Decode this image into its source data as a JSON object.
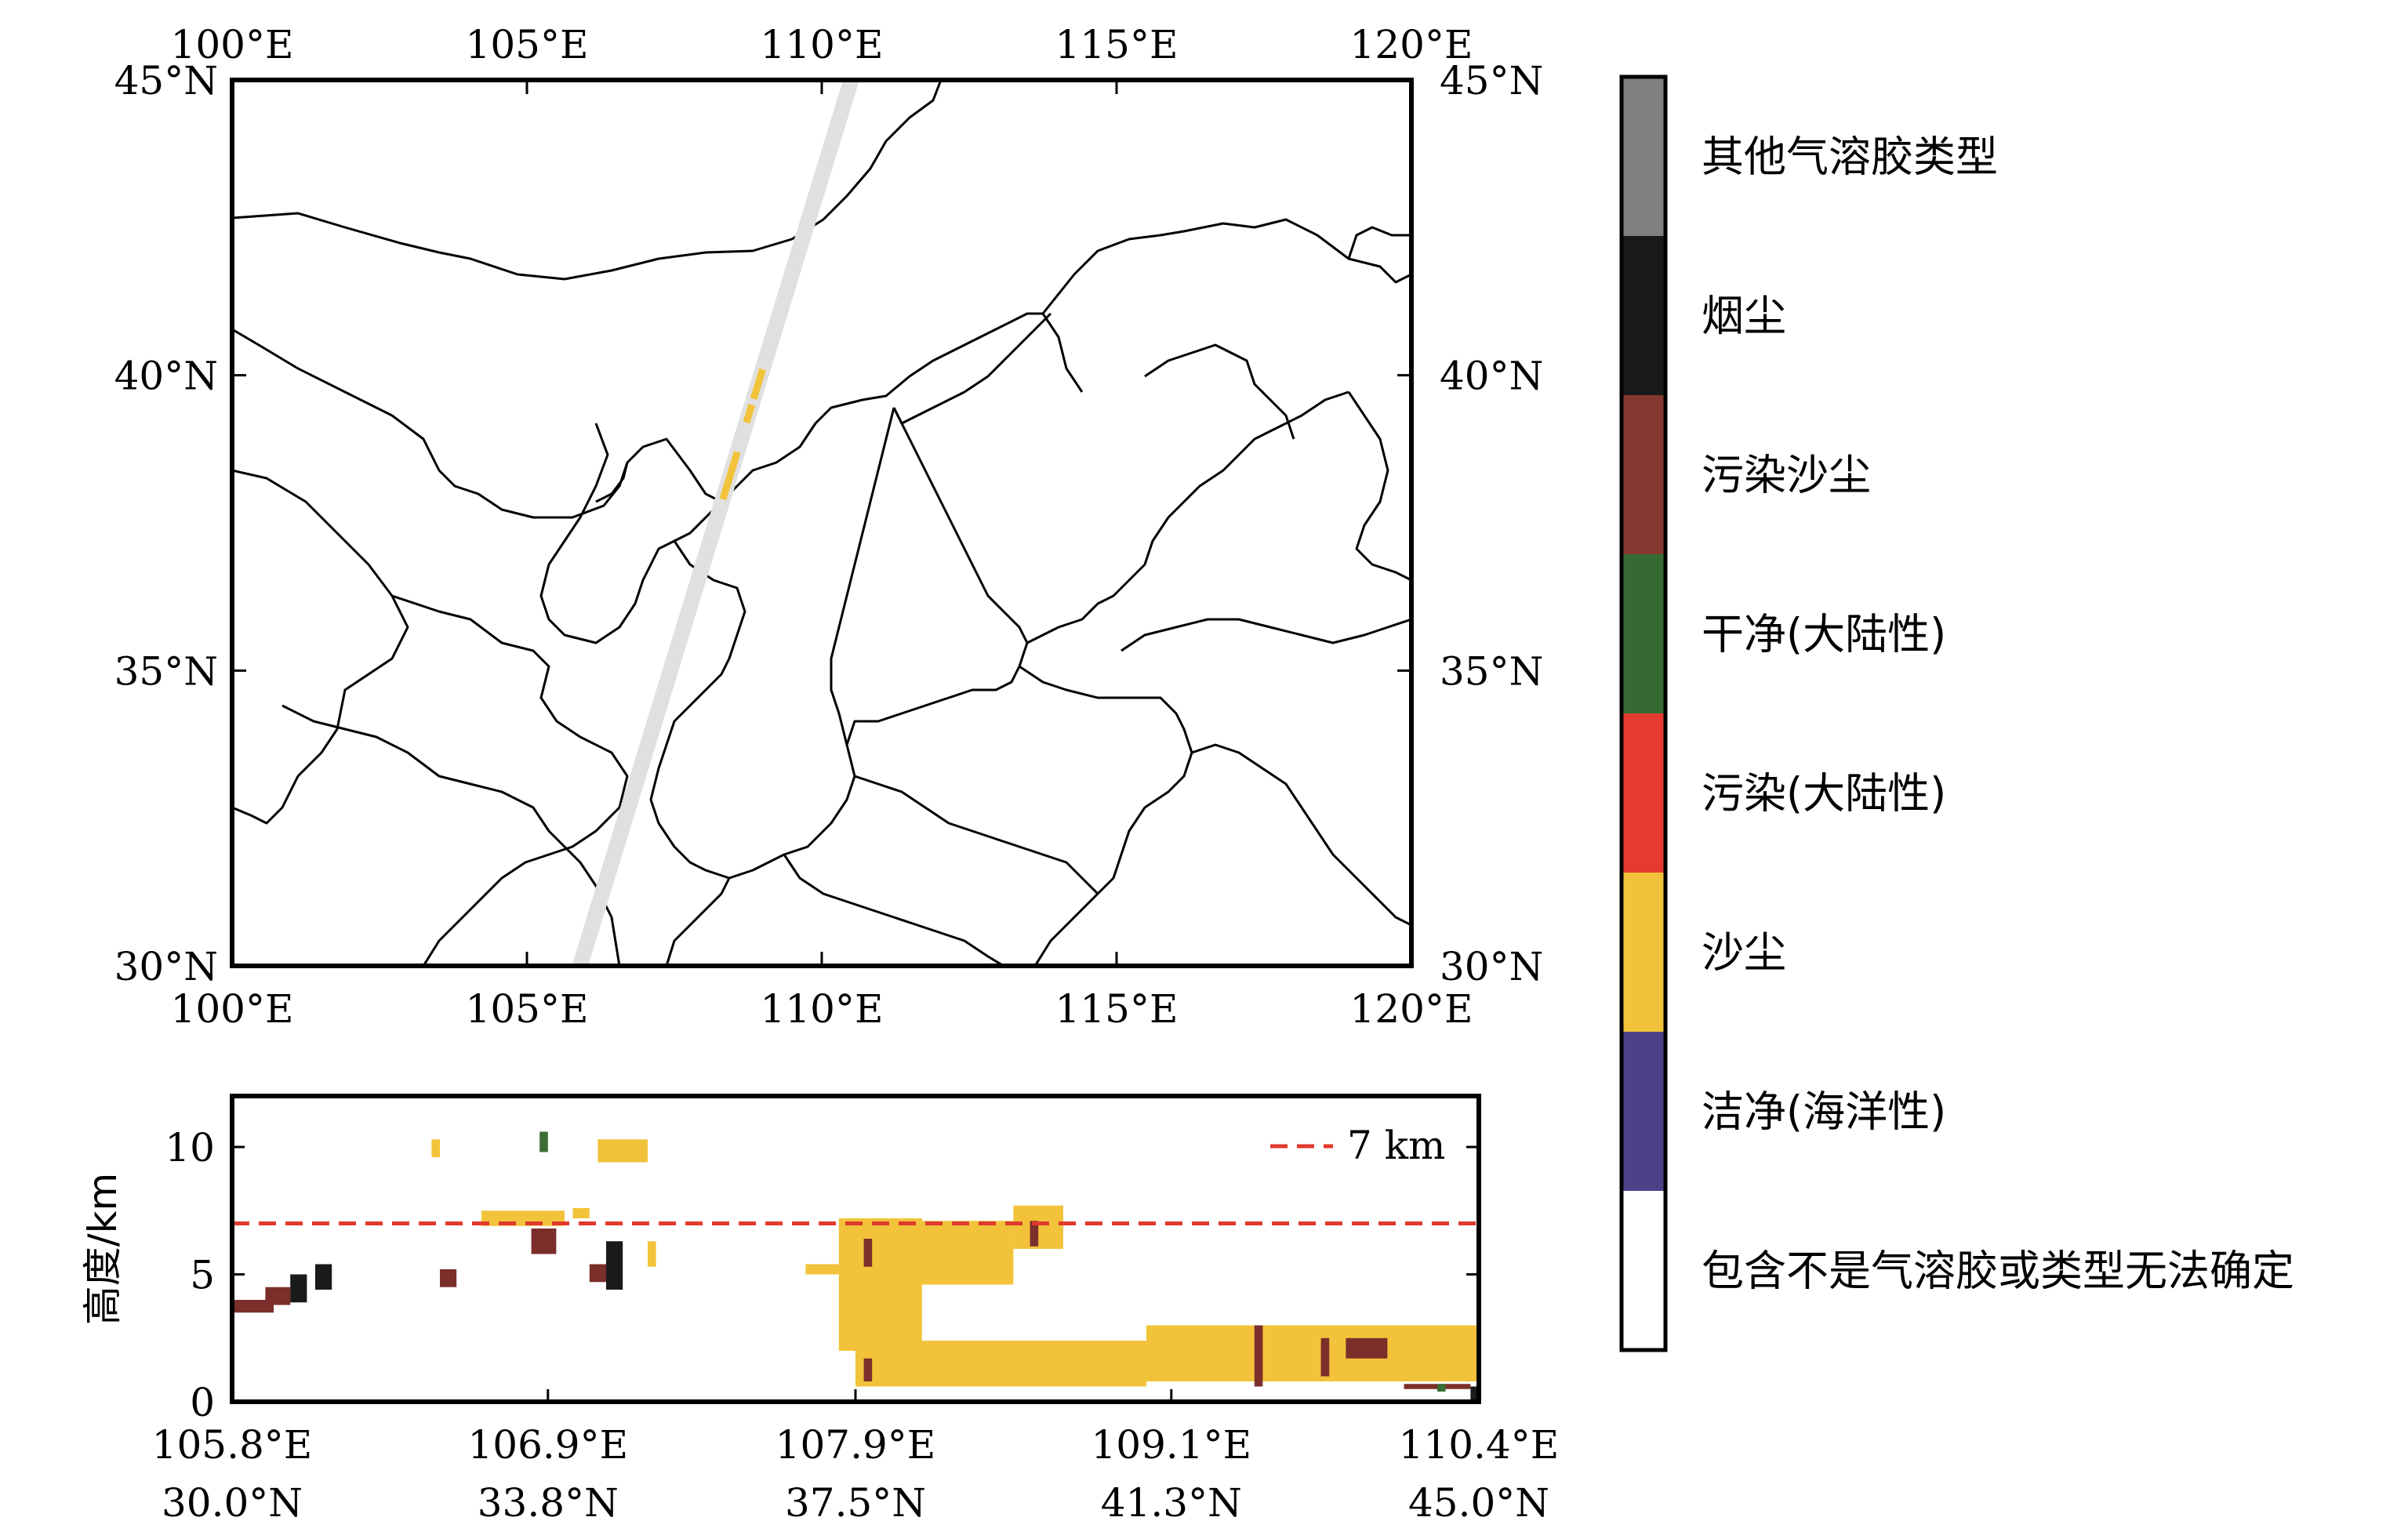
{
  "chart_data": [
    {
      "type": "map",
      "x_ticks": [
        "100°E",
        "105°E",
        "110°E",
        "115°E",
        "120°E"
      ],
      "y_ticks": [
        "45°N",
        "40°N",
        "35°N",
        "30°N"
      ],
      "lon_range": [
        100,
        120
      ],
      "lat_range": [
        30,
        45
      ],
      "track": {
        "from": [
          105.9,
          30.0
        ],
        "to": [
          110.5,
          45.0
        ],
        "color": "#e0e0e0"
      },
      "dust_segments": [
        {
          "lat_from": 37.9,
          "lat_to": 38.7,
          "color": "#f2c33a"
        },
        {
          "lat_from": 39.2,
          "lat_to": 39.5,
          "color": "#f2c33a"
        },
        {
          "lat_from": 39.6,
          "lat_to": 40.1,
          "color": "#f2c33a"
        }
      ]
    },
    {
      "type": "scatter",
      "ylabel": "高度/km",
      "ylim": [
        0,
        12
      ],
      "yticks": [
        "0",
        "5",
        "10"
      ],
      "xticks_lon": [
        "105.8°E",
        "106.9°E",
        "107.9°E",
        "109.1°E",
        "110.4°E"
      ],
      "xticks_lat": [
        "30.0°N",
        "33.8°N",
        "37.5°N",
        "41.3°N",
        "45.0°N"
      ],
      "x_positions": [
        30.0,
        33.8,
        37.5,
        41.3,
        45.0
      ],
      "xlim": [
        30.0,
        45.0
      ],
      "reference_line": {
        "label": "7 km",
        "value": 7,
        "color": "#e03a2e"
      },
      "patches": [
        {
          "x0": 30.0,
          "x1": 30.5,
          "y0": 3.5,
          "y1": 4.0,
          "color": "#7b2e2a"
        },
        {
          "x0": 30.4,
          "x1": 30.7,
          "y0": 3.8,
          "y1": 4.5,
          "color": "#7b2e2a"
        },
        {
          "x0": 30.7,
          "x1": 30.9,
          "y0": 3.9,
          "y1": 5.0,
          "color": "#1a1a1a"
        },
        {
          "x0": 31.0,
          "x1": 31.2,
          "y0": 4.4,
          "y1": 5.4,
          "color": "#1a1a1a"
        },
        {
          "x0": 32.4,
          "x1": 32.5,
          "y0": 9.6,
          "y1": 10.3,
          "color": "#f2c33a"
        },
        {
          "x0": 32.5,
          "x1": 32.7,
          "y0": 4.5,
          "y1": 5.2,
          "color": "#7b2e2a"
        },
        {
          "x0": 33.0,
          "x1": 34.0,
          "y0": 6.9,
          "y1": 7.5,
          "color": "#f2c33a"
        },
        {
          "x0": 33.6,
          "x1": 33.9,
          "y0": 5.8,
          "y1": 6.8,
          "color": "#7b2e2a"
        },
        {
          "x0": 33.7,
          "x1": 33.8,
          "y0": 9.8,
          "y1": 10.6,
          "color": "#3a6e35"
        },
        {
          "x0": 34.1,
          "x1": 34.3,
          "y0": 7.2,
          "y1": 7.6,
          "color": "#f2c33a"
        },
        {
          "x0": 34.3,
          "x1": 34.6,
          "y0": 4.7,
          "y1": 5.4,
          "color": "#7b2e2a"
        },
        {
          "x0": 34.5,
          "x1": 34.7,
          "y0": 4.4,
          "y1": 6.3,
          "color": "#1a1a1a"
        },
        {
          "x0": 34.4,
          "x1": 35.0,
          "y0": 9.4,
          "y1": 10.3,
          "color": "#f2c33a"
        },
        {
          "x0": 35.0,
          "x1": 35.1,
          "y0": 5.3,
          "y1": 6.3,
          "color": "#f2c33a"
        },
        {
          "x0": 36.9,
          "x1": 37.3,
          "y0": 5.0,
          "y1": 5.4,
          "color": "#f2c33a"
        },
        {
          "x0": 37.3,
          "x1": 38.3,
          "y0": 2.0,
          "y1": 7.2,
          "color": "#f2c33a"
        },
        {
          "x0": 37.6,
          "x1": 37.7,
          "y0": 5.3,
          "y1": 6.4,
          "color": "#7b2e2a"
        },
        {
          "x0": 38.2,
          "x1": 39.4,
          "y0": 4.6,
          "y1": 7.1,
          "color": "#f2c33a"
        },
        {
          "x0": 39.4,
          "x1": 40.0,
          "y0": 6.0,
          "y1": 7.7,
          "color": "#f2c33a"
        },
        {
          "x0": 39.6,
          "x1": 39.7,
          "y0": 6.1,
          "y1": 7.1,
          "color": "#7b2e2a"
        },
        {
          "x0": 37.5,
          "x1": 41.0,
          "y0": 0.6,
          "y1": 2.4,
          "color": "#f2c33a"
        },
        {
          "x0": 37.6,
          "x1": 37.7,
          "y0": 0.8,
          "y1": 1.7,
          "color": "#7b2e2a"
        },
        {
          "x0": 41.0,
          "x1": 45.0,
          "y0": 0.8,
          "y1": 3.0,
          "color": "#f2c33a"
        },
        {
          "x0": 42.3,
          "x1": 42.4,
          "y0": 0.6,
          "y1": 3.0,
          "color": "#7b2e2a"
        },
        {
          "x0": 43.1,
          "x1": 43.2,
          "y0": 1.0,
          "y1": 2.5,
          "color": "#7b2e2a"
        },
        {
          "x0": 43.4,
          "x1": 43.9,
          "y0": 1.7,
          "y1": 2.5,
          "color": "#7b2e2a"
        },
        {
          "x0": 44.1,
          "x1": 44.9,
          "y0": 0.5,
          "y1": 0.7,
          "color": "#7b2e2a"
        },
        {
          "x0": 44.5,
          "x1": 44.6,
          "y0": 0.4,
          "y1": 0.7,
          "color": "#3a6e35"
        },
        {
          "x0": 44.9,
          "x1": 45.0,
          "y0": 0.0,
          "y1": 0.6,
          "color": "#1a1a1a"
        }
      ]
    }
  ],
  "legend": {
    "items": [
      {
        "label": "其他气溶胶类型",
        "color": "#808080"
      },
      {
        "label": "烟尘",
        "color": "#1a1a1a"
      },
      {
        "label": "污染沙尘",
        "color": "#843830"
      },
      {
        "label": "干净(大陆性)",
        "color": "#356b32"
      },
      {
        "label": "污染(大陆性)",
        "color": "#e53a2f"
      },
      {
        "label": "沙尘",
        "color": "#f2c33a"
      },
      {
        "label": "洁净(海洋性)",
        "color": "#4b4289"
      },
      {
        "label": "包含不是气溶胶或类型无法确定",
        "color": "#ffffff"
      }
    ]
  }
}
